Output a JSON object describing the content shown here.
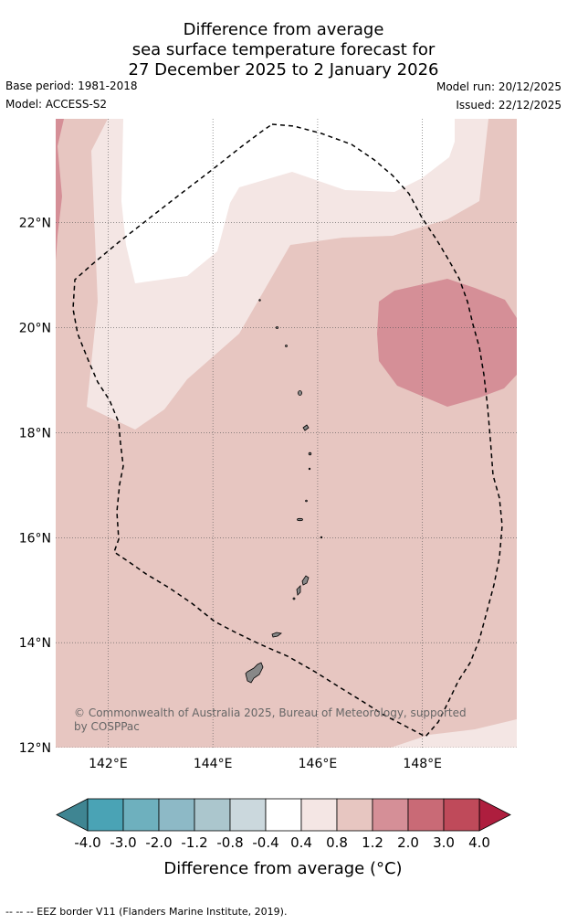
{
  "title_lines": [
    "Difference from average",
    "sea surface temperature forecast for",
    "27 December 2025 to 2 January 2026"
  ],
  "meta": {
    "base_period": "Base period: 1981-2018",
    "model": "Model: ACCESS-S2",
    "model_run": "Model run: 20/12/2025",
    "issued": "Issued: 22/12/2025"
  },
  "map": {
    "lon_range": [
      141,
      149.8
    ],
    "lat_range": [
      12,
      23.98
    ],
    "lon_ticks": [
      {
        "value": 142,
        "label": "142°E"
      },
      {
        "value": 144,
        "label": "144°E"
      },
      {
        "value": 146,
        "label": "146°E"
      },
      {
        "value": 148,
        "label": "148°E"
      }
    ],
    "lat_ticks": [
      {
        "value": 12,
        "label": "12°N"
      },
      {
        "value": 14,
        "label": "14°N"
      },
      {
        "value": 16,
        "label": "16°N"
      },
      {
        "value": 18,
        "label": "18°N"
      },
      {
        "value": 20,
        "label": "20°N"
      },
      {
        "value": 22,
        "label": "22°N"
      }
    ],
    "gridlines": true,
    "credit_lines": [
      "© Commonwealth of Australia 2025, Bureau of Meteorology, supported",
      "by COSPPac"
    ],
    "region_colors": {
      "background": "#e7c6c1",
      "near_zero": "#ffffff",
      "light": "#f4e6e4",
      "warm": "#d58f97",
      "edge": "#d58f97"
    },
    "dominant_anomaly_range": "0.8 to 1.2",
    "warm_patch_range": "1.2 to 2.0"
  },
  "colorbar": {
    "tick_labels": [
      "-4.0",
      "-3.0",
      "-2.0",
      "-1.2",
      "-0.8",
      "-0.4",
      "0.4",
      "0.8",
      "1.2",
      "2.0",
      "3.0",
      "4.0"
    ],
    "colors": [
      "#4aa3b5",
      "#6eb0be",
      "#8db9c6",
      "#abc6cd",
      "#cbd8dd",
      "#ffffff",
      "#f4e6e4",
      "#e7c6c1",
      "#d58f97",
      "#c96a76",
      "#bf4a5a"
    ],
    "min_extend_color": "#3f8592",
    "max_extend_color": "#ae1e3e",
    "label": "Difference from average (°C)"
  },
  "footer": "--  --  -- EEZ border V11 (Flanders Marine Institute, 2019)."
}
